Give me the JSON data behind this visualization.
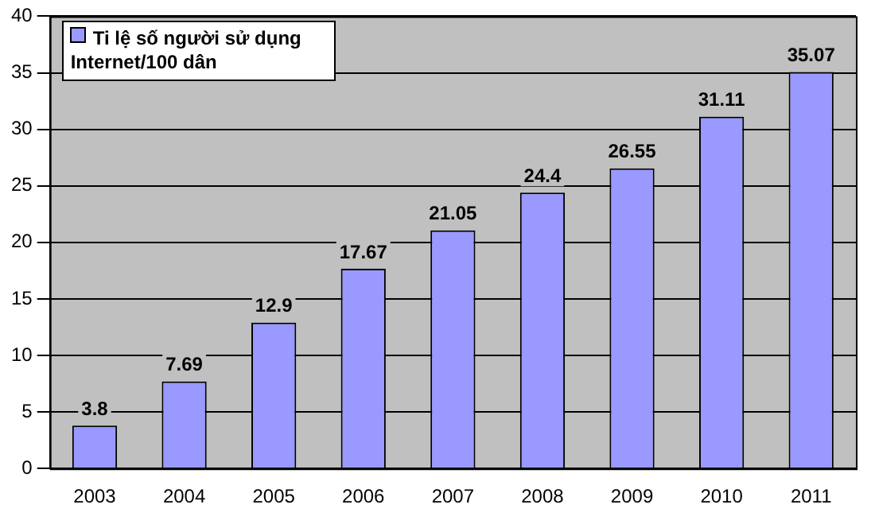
{
  "chart_data": {
    "type": "bar",
    "categories": [
      "2003",
      "2004",
      "2005",
      "2006",
      "2007",
      "2008",
      "2009",
      "2010",
      "2011"
    ],
    "series": [
      {
        "name": "Ti lệ số người sử dụng Internet/100 dân",
        "color": "#9999ff",
        "values": [
          3.8,
          7.69,
          12.9,
          17.67,
          21.05,
          24.4,
          26.55,
          31.11,
          35.07
        ]
      }
    ],
    "ylim": [
      0,
      40
    ],
    "yticks": [
      0,
      5,
      10,
      15,
      20,
      25,
      30,
      35,
      40
    ],
    "grid": "y",
    "legend": "top left",
    "data_labels": true
  }
}
